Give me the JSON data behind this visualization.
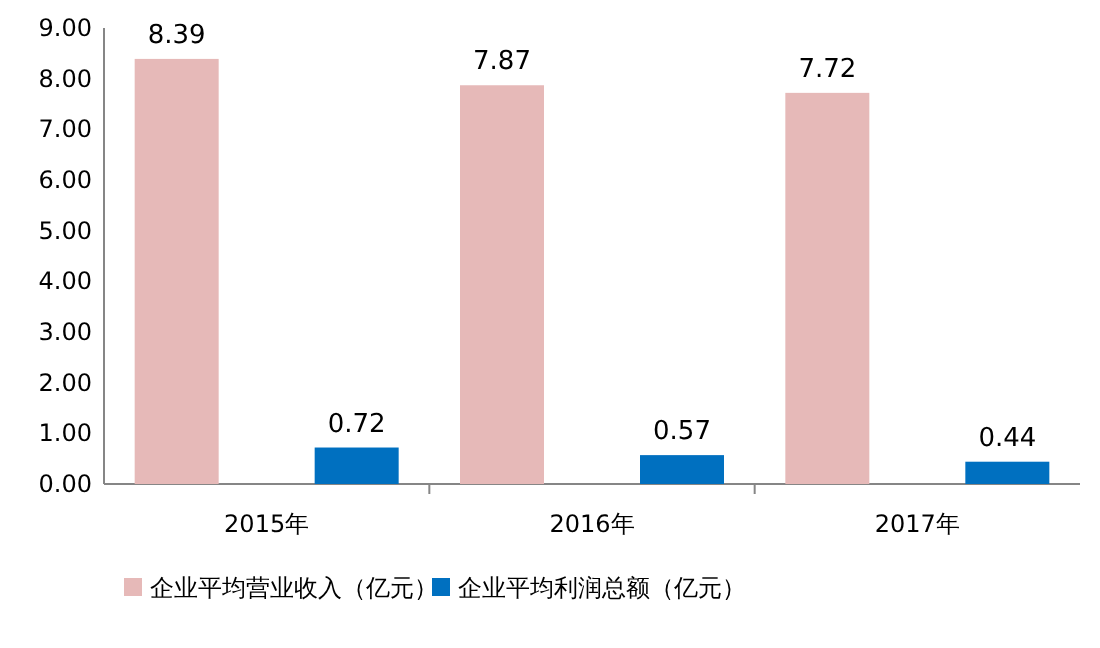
{
  "chart_data": {
    "type": "bar",
    "categories": [
      "2015年",
      "2016年",
      "2017年"
    ],
    "series": [
      {
        "name": "企业平均营业收入（亿元）",
        "color": "#e6b9b8",
        "values": [
          8.39,
          7.87,
          7.72
        ]
      },
      {
        "name": "企业平均利润总额（亿元）",
        "color": "#0070c0",
        "values": [
          0.72,
          0.57,
          0.44
        ]
      }
    ],
    "ylim": [
      0,
      9
    ],
    "yticks": [
      {
        "value": 0,
        "label": "0.00"
      },
      {
        "value": 1,
        "label": "1.00"
      },
      {
        "value": 2,
        "label": "2.00"
      },
      {
        "value": 3,
        "label": "3.00"
      },
      {
        "value": 4,
        "label": "4.00"
      },
      {
        "value": 5,
        "label": "5.00"
      },
      {
        "value": 6,
        "label": "6.00"
      },
      {
        "value": 7,
        "label": "7.00"
      },
      {
        "value": 8,
        "label": "8.00"
      },
      {
        "value": 9,
        "label": "9.00"
      }
    ],
    "data_labels": true,
    "legend": "bottom",
    "grid": false
  }
}
